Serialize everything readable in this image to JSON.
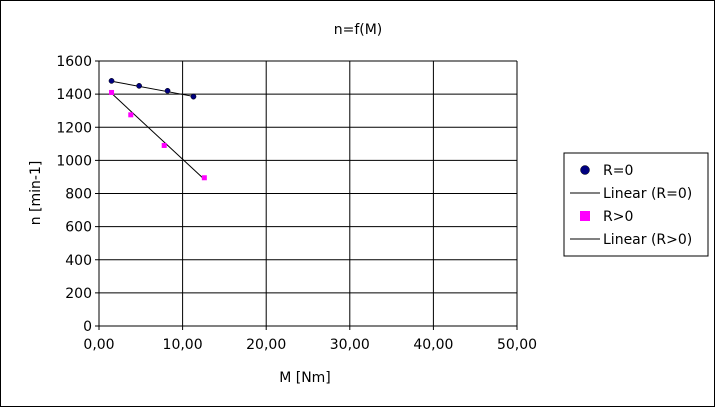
{
  "chart_data": {
    "type": "scatter",
    "title": "n=f(M)",
    "xlabel": "M [Nm]",
    "ylabel": "n [min-1]",
    "xlim": [
      0,
      50
    ],
    "ylim": [
      0,
      1600
    ],
    "x_ticks": [
      0,
      10,
      20,
      30,
      40,
      50
    ],
    "x_tick_labels": [
      "0,00",
      "10,00",
      "20,00",
      "30,00",
      "40,00",
      "50,00"
    ],
    "y_ticks": [
      0,
      200,
      400,
      600,
      800,
      1000,
      1200,
      1400,
      1600
    ],
    "y_tick_labels": [
      "0",
      "200",
      "400",
      "600",
      "800",
      "1000",
      "1200",
      "1400",
      "1600"
    ],
    "grid": true,
    "legend_position": "right",
    "series": [
      {
        "name": "R=0",
        "marker": "circle",
        "color": "#000080",
        "points": [
          {
            "x": 1.5,
            "y": 1480
          },
          {
            "x": 4.8,
            "y": 1450
          },
          {
            "x": 8.2,
            "y": 1420
          },
          {
            "x": 11.3,
            "y": 1385
          }
        ]
      },
      {
        "name": "R>0",
        "marker": "square",
        "color": "#ff00ff",
        "points": [
          {
            "x": 1.5,
            "y": 1410
          },
          {
            "x": 3.8,
            "y": 1275
          },
          {
            "x": 7.8,
            "y": 1090
          },
          {
            "x": 12.6,
            "y": 895
          }
        ]
      }
    ],
    "trendlines": [
      {
        "name": "Linear (R=0)",
        "color": "#000000",
        "x": [
          1.5,
          11.3
        ],
        "y": [
          1478,
          1386
        ]
      },
      {
        "name": "Linear (R>0)",
        "color": "#000000",
        "x": [
          1.5,
          12.6
        ],
        "y": [
          1405,
          885
        ]
      }
    ]
  }
}
